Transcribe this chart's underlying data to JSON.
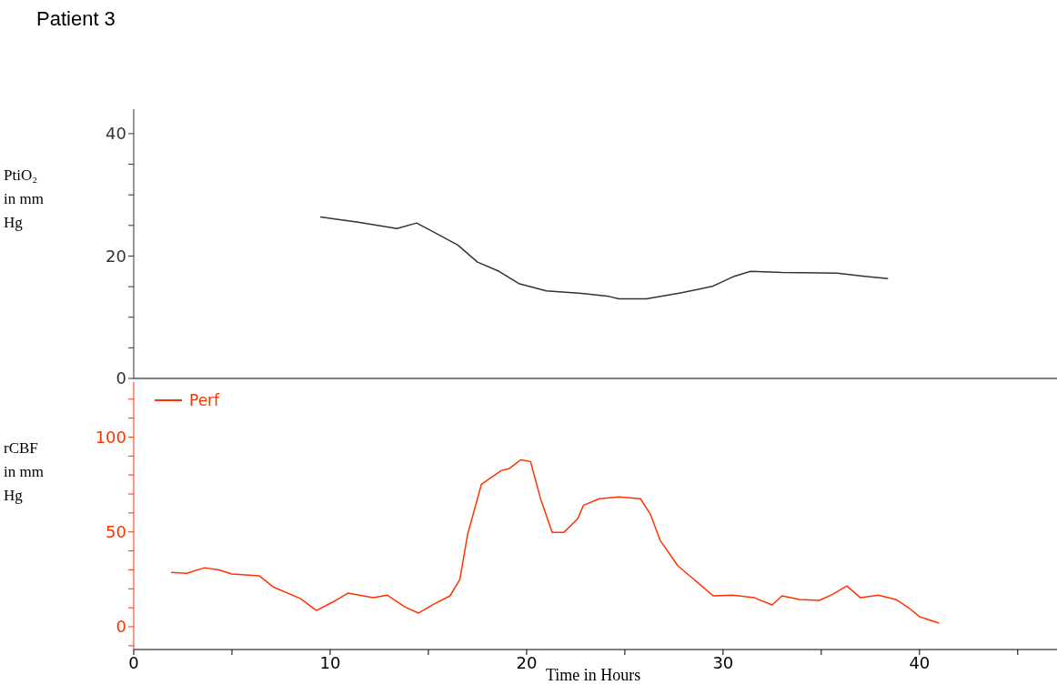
{
  "chart_data": [
    {
      "type": "line",
      "title": "Patient 3",
      "ylabel": "PtiO₂ in mm Hg",
      "xlim": [
        0,
        47
      ],
      "ylim": [
        0,
        44
      ],
      "yticks": [
        0,
        {
          "value": 5,
          "label": null
        },
        {
          "value": 10,
          "label": null
        },
        {
          "value": 15,
          "label": null
        },
        20,
        {
          "value": 25,
          "label": null
        },
        {
          "value": 30,
          "label": null
        },
        {
          "value": 35,
          "label": null
        },
        40
      ],
      "tick_labels": "y",
      "series": [
        {
          "color": "#333333",
          "x": [
            9.5,
            11.5,
            13.4,
            14.4,
            15.4,
            16.5,
            17.5,
            18.6,
            19.6,
            21,
            22.8,
            24.2,
            24.7,
            26.1,
            27.9,
            29.5,
            30.5,
            31.4,
            33,
            35.8,
            37.2,
            38.4
          ],
          "values": [
            26.4,
            25.5,
            24.5,
            25.4,
            23.7,
            21.8,
            19,
            17.5,
            15.5,
            14.3,
            13.9,
            13.4,
            13,
            13,
            14,
            15.1,
            16.6,
            17.5,
            17.3,
            17.2,
            16.7,
            16.3
          ]
        }
      ]
    },
    {
      "type": "line",
      "ylabel": "rCBF in mm Hg",
      "xlabel": "Time in Hours",
      "legend": "top left",
      "xlim": [
        0,
        47
      ],
      "xticks": [
        0,
        {
          "value": 5,
          "label": null
        },
        10,
        {
          "value": 15,
          "label": null
        },
        20,
        {
          "value": 25,
          "label": null
        },
        30,
        {
          "value": 35,
          "label": null
        },
        40,
        {
          "value": 45,
          "label": null
        }
      ],
      "ylim": [
        -12,
        129
      ],
      "yticks": [
        {
          "value": -10,
          "label": null
        },
        0,
        {
          "value": 10,
          "label": null
        },
        {
          "value": 20,
          "label": null
        },
        {
          "value": 30,
          "label": null
        },
        {
          "value": 40,
          "label": null
        },
        50,
        {
          "value": 60,
          "label": null
        },
        {
          "value": 70,
          "label": null
        },
        {
          "value": 80,
          "label": null
        },
        {
          "value": 90,
          "label": null
        },
        100,
        {
          "value": 110,
          "label": null
        },
        {
          "value": 120,
          "label": null
        }
      ],
      "series": [
        {
          "name": "Perf",
          "color": "#ff3300",
          "x": [
            1.9,
            2.7,
            3.6,
            4.3,
            5,
            6.4,
            7.1,
            8.5,
            9.3,
            10.2,
            10.9,
            12.2,
            12.9,
            13.8,
            14.5,
            15.3,
            16.1,
            16.6,
            17,
            17.7,
            18.7,
            19.1,
            19.7,
            20.2,
            20.7,
            21.3,
            21.9,
            22.6,
            22.9,
            23.7,
            24.7,
            25.8,
            26.3,
            26.8,
            27.7,
            28.8,
            29.5,
            30.5,
            31.6,
            32.5,
            33,
            33.9,
            34.9,
            35.6,
            36.3,
            37,
            37.9,
            38.8,
            39.5,
            40,
            41
          ],
          "values": [
            28.7,
            28.2,
            31.1,
            30.1,
            27.8,
            26.8,
            21,
            14.8,
            8.6,
            13.4,
            17.7,
            15.3,
            16.7,
            10.5,
            7.2,
            12,
            16.3,
            24.9,
            48.8,
            75.1,
            82.3,
            83.3,
            88,
            87.1,
            67.9,
            49.8,
            49.8,
            56.9,
            64.1,
            67.5,
            68.4,
            67.5,
            59.3,
            45.5,
            32.1,
            22.5,
            16.3,
            16.7,
            15.3,
            11.5,
            16.3,
            14.4,
            13.9,
            17.2,
            21.5,
            15.3,
            16.7,
            14.4,
            9.6,
            5.3,
            1.9
          ]
        }
      ]
    }
  ]
}
